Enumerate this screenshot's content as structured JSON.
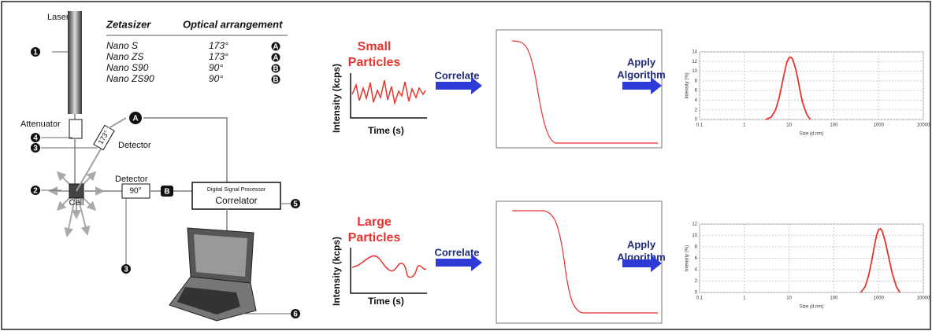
{
  "instrument": {
    "laser": "Laser",
    "attenuator": "Attenuator",
    "cell": "Cell",
    "detector_back": "Detector",
    "angle_back": "173°",
    "detector_side": "Detector",
    "angle_side": "90°",
    "processor": "Digital Signal Processor",
    "correlator": "Correlator",
    "callouts": [
      "1",
      "4",
      "3",
      "2",
      "3",
      "5",
      "6"
    ],
    "paths": [
      "A",
      "B"
    ]
  },
  "table": {
    "headers": [
      "Zetasizer",
      "Optical arrangement"
    ],
    "rows": [
      [
        "Nano S",
        "173°",
        "A"
      ],
      [
        "Nano ZS",
        "173°",
        "A"
      ],
      [
        "Nano S90",
        "90°",
        "B"
      ],
      [
        "Nano ZS90",
        "90°",
        "B"
      ]
    ]
  },
  "panels": [
    {
      "title_lines": [
        "Small",
        "Particles"
      ],
      "trace_y_label": "Intensity (kcps)",
      "trace_x_label": "Time (s)",
      "step1": "Correlate",
      "step2_lines": [
        "Apply",
        "Algorithm"
      ],
      "size_chart": {
        "type": "line",
        "x_label": "Size (d.nm)",
        "y_label": "Intensity (%)",
        "log_x": true,
        "grid": true,
        "color": "#e8332e",
        "xlim": [
          0.1,
          10000
        ],
        "xticks": [
          0.1,
          1,
          10,
          100,
          1000,
          10000
        ],
        "ylim": [
          0,
          14
        ],
        "yticks": [
          0,
          2,
          4,
          6,
          8,
          10,
          12,
          14
        ],
        "x": [
          3,
          4,
          5,
          6,
          7,
          8,
          9,
          10,
          11,
          12,
          14,
          16,
          18,
          20,
          25,
          30
        ],
        "y": [
          0,
          0.5,
          2,
          4.5,
          7.5,
          10,
          12,
          12.8,
          12.9,
          12.5,
          10.5,
          8,
          5.5,
          3.5,
          1,
          0
        ]
      }
    },
    {
      "title_lines": [
        "Large",
        "Particles"
      ],
      "trace_y_label": "Intensity (kcps)",
      "trace_x_label": "Time (s)",
      "step1": "Correlate",
      "step2_lines": [
        "Apply",
        "Algorithm"
      ],
      "size_chart": {
        "type": "line",
        "x_label": "Size (d.nm)",
        "y_label": "Intensity (%)",
        "log_x": true,
        "grid": true,
        "color": "#e8332e",
        "xlim": [
          0.1,
          10000
        ],
        "xticks": [
          0.1,
          1,
          10,
          100,
          1000,
          10000
        ],
        "ylim": [
          0,
          12
        ],
        "yticks": [
          0,
          2,
          4,
          6,
          8,
          10,
          12
        ],
        "x": [
          400,
          500,
          600,
          700,
          800,
          900,
          1000,
          1100,
          1200,
          1400,
          1700,
          2000,
          2500,
          3000
        ],
        "y": [
          0,
          1,
          3,
          5.5,
          8,
          10,
          11,
          11.2,
          10.8,
          9,
          6,
          3.5,
          1,
          0
        ]
      }
    }
  ]
}
